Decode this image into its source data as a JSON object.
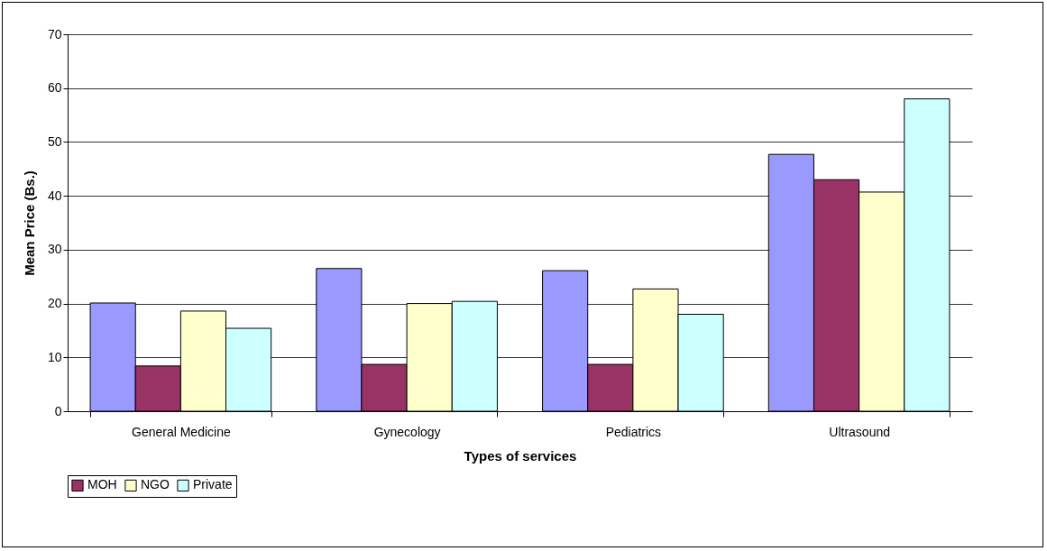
{
  "chart_data": {
    "type": "bar",
    "xlabel": "Types of services",
    "ylabel": "Mean Price (Bs.)",
    "categories": [
      "General Medicine",
      "Gynecology",
      "Pediatrics",
      "Ultrasound"
    ],
    "series": [
      {
        "color": "#9999ff",
        "values": [
          20.1,
          26.5,
          26.1,
          47.7
        ]
      },
      {
        "name": "MOH",
        "color": "#993366",
        "values": [
          8.4,
          8.7,
          8.7,
          43.0
        ]
      },
      {
        "name": "NGO",
        "color": "#ffffcc",
        "values": [
          18.6,
          20.0,
          22.7,
          40.7
        ]
      },
      {
        "name": "Private",
        "color": "#ccffff",
        "values": [
          15.4,
          20.4,
          18.0,
          58.0
        ]
      }
    ],
    "ylim": [
      0,
      70
    ],
    "yticks": [
      0,
      10,
      20,
      30,
      40,
      50,
      60,
      70
    ],
    "grid": "y",
    "legend": "bottom"
  }
}
